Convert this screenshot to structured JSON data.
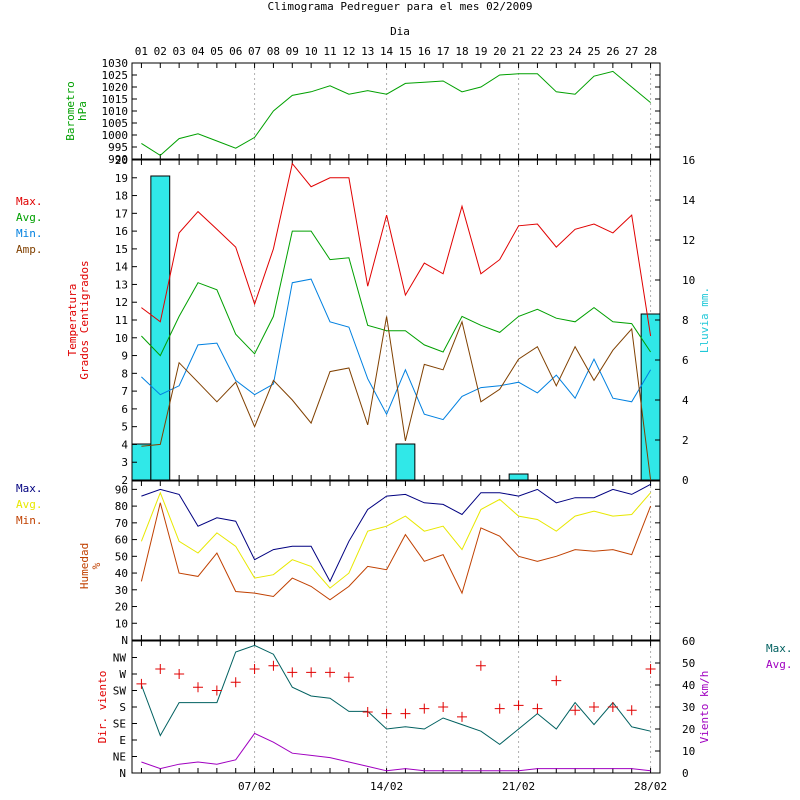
{
  "title": "Climograma Pedreguer para el mes 02/2009",
  "chart_data": [
    {
      "type": "line",
      "id": "barometer",
      "ylabel": [
        "Barometro",
        "hPa"
      ],
      "ylim": [
        990,
        1030
      ],
      "yticks": [
        990,
        995,
        1000,
        1005,
        1010,
        1015,
        1020,
        1025,
        1030
      ],
      "top_axis_label": "Dia",
      "days": [
        "01",
        "02",
        "03",
        "04",
        "05",
        "06",
        "07",
        "08",
        "09",
        "10",
        "11",
        "12",
        "13",
        "14",
        "15",
        "16",
        "17",
        "18",
        "19",
        "20",
        "21",
        "22",
        "23",
        "24",
        "25",
        "26",
        "27",
        "28"
      ],
      "series": [
        {
          "name": "",
          "color": "#00a000",
          "values": [
            996.5,
            991.5,
            998.5,
            1000.5,
            997.5,
            994.5,
            999,
            1010,
            1016.5,
            1018,
            1020.5,
            1017,
            1018.5,
            1017,
            1021.5,
            1022,
            1022.5,
            1018,
            1020,
            1025,
            1025.5,
            1025.5,
            1018,
            1017,
            1024.5,
            1026.5,
            1020,
            1013.5
          ]
        }
      ]
    },
    {
      "type": "line",
      "id": "temperature",
      "ylabel": [
        "Temperatura",
        "Grados Centigrados"
      ],
      "ylim": [
        2,
        20
      ],
      "yticks": [
        2,
        3,
        4,
        5,
        6,
        7,
        8,
        9,
        10,
        11,
        12,
        13,
        14,
        15,
        16,
        17,
        18,
        19,
        20
      ],
      "y2label": "Lluvia mm.",
      "y2lim": [
        0,
        16
      ],
      "y2ticks": [
        0,
        2,
        4,
        6,
        8,
        10,
        12,
        14,
        16
      ],
      "legend": [
        "Max.",
        "Avg.",
        "Min.",
        "Amp."
      ],
      "series": [
        {
          "name": "Max.",
          "color": "#e00000",
          "values": [
            11.7,
            10.9,
            15.9,
            17.1,
            16.1,
            15.1,
            11.9,
            15,
            19.8,
            18.5,
            19,
            19,
            12.9,
            16.9,
            12.4,
            14.2,
            13.6,
            17.4,
            13.6,
            14.4,
            16.3,
            16.4,
            15.1,
            16.1,
            16.4,
            15.9,
            16.9,
            10.1
          ]
        },
        {
          "name": "Avg.",
          "color": "#00a000",
          "values": [
            10.1,
            9,
            11.2,
            13.1,
            12.7,
            10.2,
            9.1,
            11.2,
            16,
            16,
            14.4,
            14.5,
            10.7,
            10.4,
            10.4,
            9.6,
            9.2,
            11.2,
            10.7,
            10.3,
            11.2,
            11.6,
            11.1,
            10.9,
            11.7,
            10.9,
            10.8,
            9.2
          ]
        },
        {
          "name": "Min.",
          "color": "#0080e0",
          "values": [
            7.8,
            6.8,
            7.3,
            9.6,
            9.7,
            7.6,
            6.8,
            7.4,
            13.1,
            13.3,
            10.9,
            10.6,
            7.7,
            5.7,
            8.2,
            5.7,
            5.4,
            6.7,
            7.2,
            7.3,
            7.5,
            6.9,
            7.9,
            6.6,
            8.8,
            6.6,
            6.4,
            8.2
          ]
        },
        {
          "name": "Amp.",
          "color": "#804000",
          "values": [
            3.9,
            4,
            8.6,
            7.5,
            6.4,
            7.5,
            5,
            7.6,
            6.5,
            5.2,
            8.1,
            8.3,
            5.1,
            11.2,
            4.2,
            8.5,
            8.2,
            10.9,
            6.4,
            7.1,
            8.8,
            9.5,
            7.3,
            9.5,
            7.6,
            9.3,
            10.5,
            2
          ]
        }
      ],
      "rain": {
        "name": "Lluvia mm.",
        "color": "#30e8e8",
        "values": [
          1.8,
          15.2,
          0,
          0,
          0,
          0,
          0,
          0,
          0,
          0,
          0,
          0,
          0,
          0,
          1.8,
          0,
          0,
          0,
          0,
          0,
          0.3,
          0,
          0,
          0,
          0,
          0,
          0,
          8.3
        ]
      }
    },
    {
      "type": "line",
      "id": "humidity",
      "ylabel": [
        "Humedad",
        "%"
      ],
      "ylim": [
        0,
        95
      ],
      "yticks": [
        10,
        20,
        30,
        40,
        50,
        60,
        70,
        80,
        90
      ],
      "zero_label": "N",
      "legend": [
        "Max.",
        "Avg.",
        "Min."
      ],
      "series": [
        {
          "name": "Max.",
          "color": "#000080",
          "values": [
            86,
            90,
            87,
            68,
            73,
            71,
            48,
            54,
            56,
            56,
            35,
            59,
            78,
            86,
            87,
            82,
            81,
            75,
            88,
            88,
            86,
            90,
            82,
            85,
            85,
            90,
            87,
            93
          ]
        },
        {
          "name": "Avg.",
          "color": "#e8e800",
          "values": [
            59,
            88,
            59,
            52,
            64,
            56,
            37,
            39,
            48,
            44,
            31,
            40,
            65,
            68,
            74,
            65,
            68,
            54,
            78,
            84,
            74,
            72,
            65,
            74,
            77,
            74,
            75,
            88
          ]
        },
        {
          "name": "Min.",
          "color": "#c04000",
          "values": [
            35,
            82,
            40,
            38,
            52,
            29,
            28,
            26,
            37,
            32,
            24,
            32,
            44,
            42,
            63,
            47,
            51,
            28,
            67,
            62,
            50,
            47,
            50,
            54,
            53,
            54,
            51,
            80
          ]
        }
      ]
    },
    {
      "type": "line",
      "id": "wind",
      "ylabel": "Dir. viento",
      "ycategories": [
        "N",
        "NE",
        "E",
        "SE",
        "S",
        "SW",
        "W",
        "NW",
        "N"
      ],
      "y2label": "Viento km/h",
      "y2lim": [
        0,
        60
      ],
      "y2ticks": [
        0,
        10,
        20,
        30,
        40,
        50,
        60
      ],
      "legend": [
        "Max.",
        "Avg."
      ],
      "direction": {
        "name": "Dir. viento",
        "color": "#e00000",
        "values": [
          5.4,
          6.3,
          6.0,
          5.2,
          5.0,
          5.5,
          6.3,
          6.5,
          6.1,
          6.1,
          6.1,
          5.8,
          3.7,
          3.6,
          3.6,
          3.9,
          4.0,
          3.4,
          6.5,
          3.9,
          4.1,
          3.9,
          5.6,
          3.8,
          4.0,
          4.0,
          3.8,
          6.3
        ]
      },
      "series": [
        {
          "name": "Max.",
          "color": "#006060",
          "values": [
            40,
            17,
            32,
            32,
            32,
            55,
            58,
            54,
            39,
            35,
            34,
            28,
            28,
            20,
            21,
            20,
            25,
            22,
            19,
            13,
            20,
            27,
            20,
            32,
            22,
            32,
            21,
            19
          ]
        },
        {
          "name": "Avg.",
          "color": "#a000c0",
          "values": [
            5,
            2,
            4,
            5,
            4,
            6,
            18,
            14,
            9,
            8,
            7,
            5,
            3,
            1,
            2,
            1,
            1,
            1,
            1,
            1,
            1,
            2,
            2,
            2,
            2,
            2,
            2,
            1
          ]
        }
      ],
      "xticks": [
        "07/02",
        "14/02",
        "21/02",
        "28/02"
      ]
    }
  ]
}
